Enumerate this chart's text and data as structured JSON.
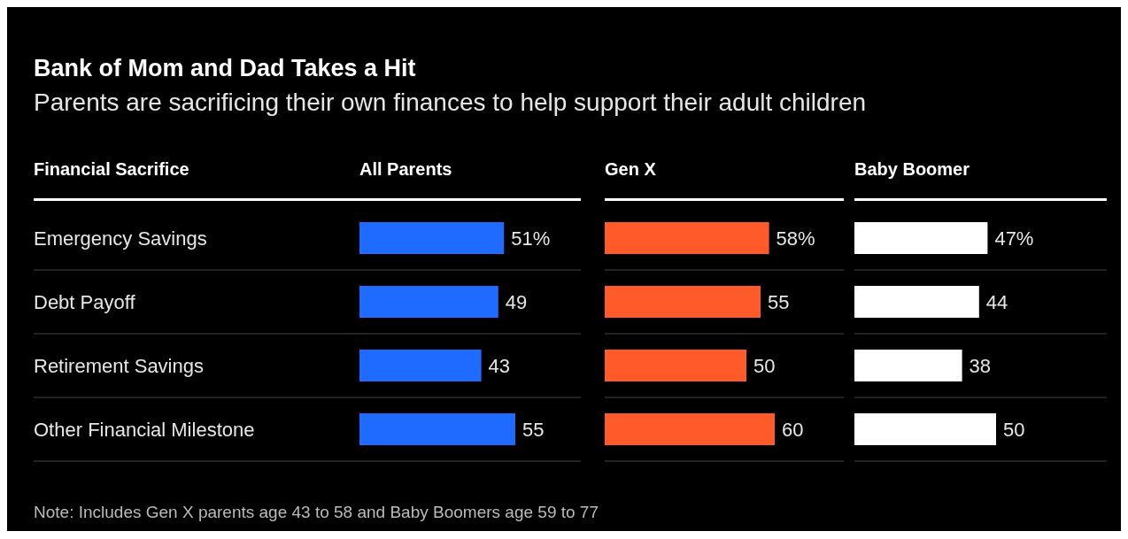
{
  "chart_data": [
    {
      "type": "bar",
      "orientation": "horizontal",
      "title": "All Parents",
      "ylabel": "Financial Sacrifice",
      "categories": [
        "Emergency Savings",
        "Debt Payoff",
        "Retirement Savings",
        "Other Financial Milestone"
      ],
      "values": [
        51,
        49,
        43,
        55
      ],
      "value_labels": [
        "51%",
        "49",
        "43",
        "55"
      ],
      "color": "#1f6bff",
      "grid": "y",
      "tick_labels": "y",
      "annotations": [
        "Bank of Mom and Dad Takes a Hit",
        "Parents are sacrificing their own finances to help support their adult children",
        "Note: Includes Gen X parents age 43 to 58 and Baby Boomers age 59 to 77"
      ]
    },
    {
      "type": "bar",
      "orientation": "horizontal",
      "title": "Gen X",
      "categories": [
        null,
        null,
        null,
        null
      ],
      "values": [
        58,
        55,
        50,
        60
      ],
      "value_labels": [
        "58%",
        "55",
        "50",
        "60"
      ],
      "color": "#ff5a2a",
      "grid": "y",
      "tick_labels": false
    },
    {
      "type": "bar",
      "orientation": "horizontal",
      "title": "Baby Boomer",
      "categories": [
        null,
        null,
        null,
        null
      ],
      "values": [
        47,
        44,
        38,
        50
      ],
      "value_labels": [
        "47%",
        "44",
        "38",
        "50"
      ],
      "color": "#ffffff",
      "grid": "y",
      "tick_labels": false
    }
  ]
}
